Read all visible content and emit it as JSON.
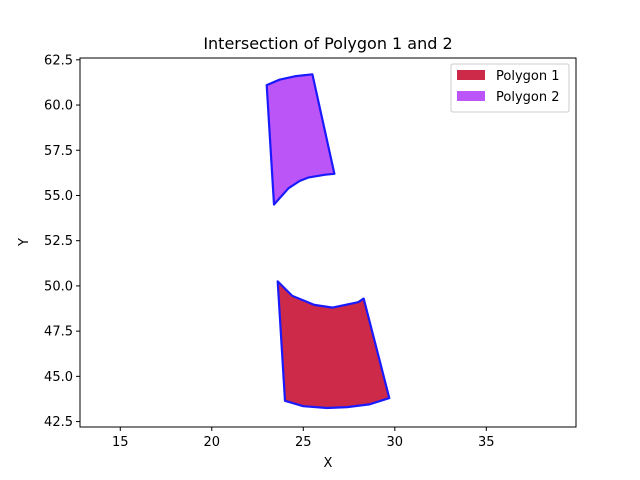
{
  "chart_data": {
    "type": "area",
    "title": "Intersection of Polygon 1 and 2",
    "xlabel": "X",
    "ylabel": "Y",
    "xlim": [
      12.8,
      39.9
    ],
    "ylim": [
      42.2,
      62.6
    ],
    "xticks": [
      15,
      20,
      25,
      30,
      35
    ],
    "xtick_labels": [
      "15",
      "20",
      "25",
      "30",
      "35"
    ],
    "yticks": [
      42.5,
      45.0,
      47.5,
      50.0,
      52.5,
      55.0,
      57.5,
      60.0,
      62.5
    ],
    "ytick_labels": [
      "42.5",
      "45.0",
      "47.5",
      "50.0",
      "52.5",
      "55.0",
      "57.5",
      "60.0",
      "62.5"
    ],
    "grid": false,
    "legend_position": "top-right",
    "edge_color": "#1a1aff",
    "series": [
      {
        "name": "Polygon 1",
        "color": "#cc2a48",
        "points": [
          [
            23.6,
            50.25
          ],
          [
            24.4,
            49.45
          ],
          [
            25.6,
            48.95
          ],
          [
            26.6,
            48.8
          ],
          [
            28.0,
            49.1
          ],
          [
            28.3,
            49.3
          ],
          [
            29.7,
            43.8
          ],
          [
            28.6,
            43.45
          ],
          [
            27.4,
            43.3
          ],
          [
            26.3,
            43.25
          ],
          [
            25.0,
            43.35
          ],
          [
            24.0,
            43.65
          ]
        ]
      },
      {
        "name": "Polygon 2",
        "color": "#bb55f7",
        "points": [
          [
            23.0,
            61.1
          ],
          [
            23.7,
            61.4
          ],
          [
            24.6,
            61.6
          ],
          [
            25.5,
            61.7
          ],
          [
            26.7,
            56.2
          ],
          [
            26.2,
            56.15
          ],
          [
            25.3,
            56.0
          ],
          [
            24.8,
            55.8
          ],
          [
            24.2,
            55.4
          ],
          [
            23.4,
            54.5
          ]
        ]
      }
    ]
  }
}
